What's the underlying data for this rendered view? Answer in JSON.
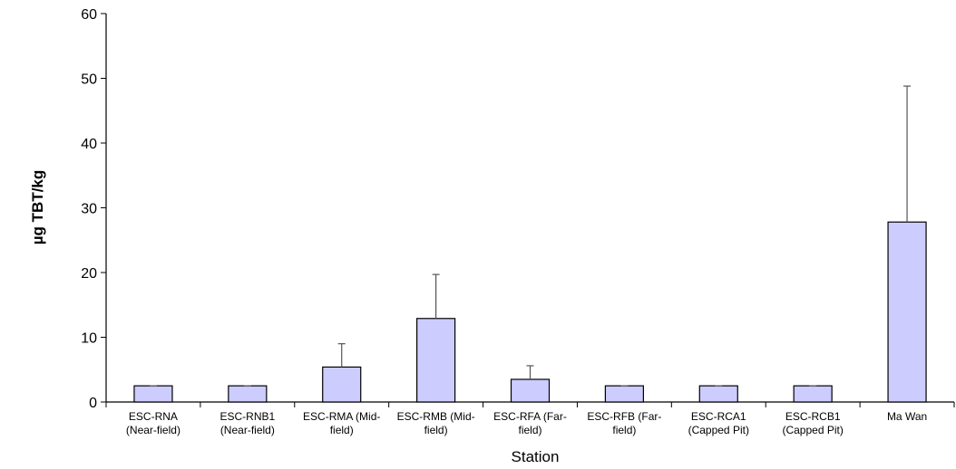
{
  "chart_data": {
    "type": "bar",
    "title": "",
    "xlabel": "Station",
    "ylabel": "µg TBT/kg",
    "ylim": [
      0,
      60
    ],
    "yticks": [
      0,
      10,
      20,
      30,
      40,
      50,
      60
    ],
    "grid": false,
    "legend": "none",
    "bar_color": "#ccccff",
    "categories": [
      [
        "ESC-RNA",
        "(Near-field)"
      ],
      [
        "ESC-RNB1",
        "(Near-field)"
      ],
      [
        "ESC-RMA (Mid-",
        "field)"
      ],
      [
        "ESC-RMB (Mid-",
        "field)"
      ],
      [
        "ESC-RFA (Far-",
        "field)"
      ],
      [
        "ESC-RFB (Far-",
        "field)"
      ],
      [
        "ESC-RCA1",
        "(Capped Pit)"
      ],
      [
        "ESC-RCB1",
        "(Capped Pit)"
      ],
      [
        "Ma Wan"
      ]
    ],
    "series": [
      {
        "values": [
          2.5,
          2.5,
          5.4,
          12.9,
          3.5,
          2.5,
          2.5,
          2.5,
          27.8
        ],
        "error_upper": [
          0,
          0,
          3.6,
          6.8,
          2.1,
          0,
          0,
          0,
          21.0
        ]
      }
    ]
  }
}
